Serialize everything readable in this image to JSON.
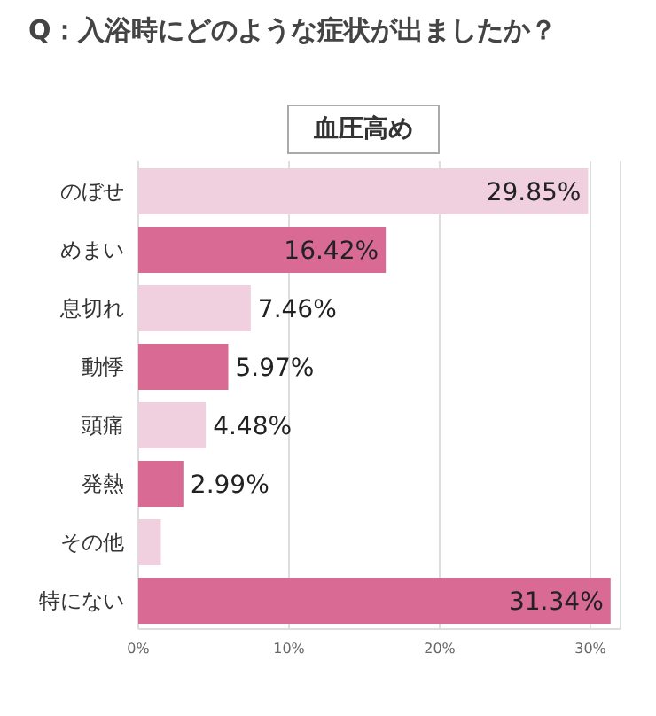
{
  "chart_data": {
    "type": "bar",
    "orientation": "horizontal",
    "title": "Q：入浴時にどのような症状が出ましたか？",
    "subtitle": "血圧高め",
    "categories": [
      "のぼせ",
      "めまい",
      "息切れ",
      "動悸",
      "頭痛",
      "発熱",
      "その他",
      "特にない"
    ],
    "values": [
      29.85,
      16.42,
      7.46,
      5.97,
      4.48,
      2.99,
      1.5,
      31.34
    ],
    "colors": [
      "#f0d0de",
      "#d96a93",
      "#f0d0de",
      "#d96a93",
      "#f0d0de",
      "#d96a93",
      "#f0d0de",
      "#d96a93"
    ],
    "value_labels": [
      "29.85%",
      "16.42%",
      "7.46%",
      "5.97%",
      "4.48%",
      "2.99%",
      null,
      "31.34%"
    ],
    "xlim": [
      0,
      32
    ],
    "xticks": [
      {
        "value": 0,
        "label": "0%"
      },
      {
        "value": 10,
        "label": "10%"
      },
      {
        "value": 20,
        "label": "20%"
      },
      {
        "value": 30,
        "label": "30%"
      }
    ],
    "grid": "x"
  }
}
